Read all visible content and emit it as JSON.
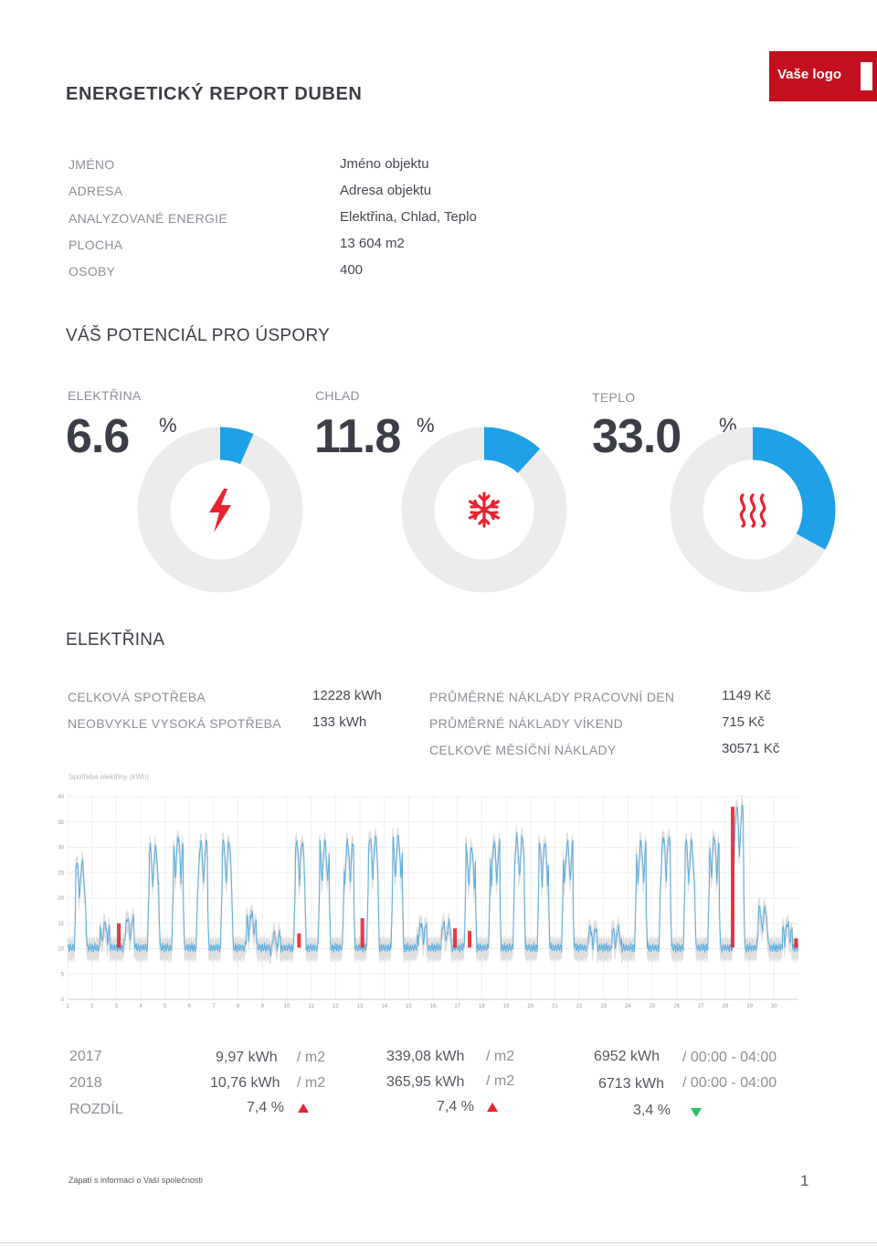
{
  "report": {
    "title": "ENERGETICKÝ REPORT DUBEN",
    "logo_text": "Vaše logo"
  },
  "info": [
    {
      "label": "JMÉNO",
      "value": "Jméno objektu"
    },
    {
      "label": "ADRESA",
      "value": "Adresa objektu"
    },
    {
      "label": "ANALYZOVANÉ ENERGIE",
      "value": "Elektřina, Chlad, Teplo"
    },
    {
      "label": "PLOCHA",
      "value": "13 604 m2"
    },
    {
      "label": "OSOBY",
      "value": "400"
    }
  ],
  "savings": {
    "title": "VÁŠ POTENCIÁL PRO ÚSPORY",
    "gauges": [
      {
        "label": "ELEKTŘINA",
        "value": "6.6",
        "unit": "%",
        "fraction": 0.066,
        "icon": "lightning-icon"
      },
      {
        "label": "CHLAD",
        "value": "11.8",
        "unit": "%",
        "fraction": 0.118,
        "icon": "snowflake-icon"
      },
      {
        "label": "TEPLO",
        "value": "33.0",
        "unit": "%",
        "fraction": 0.33,
        "icon": "heat-icon"
      }
    ],
    "colors": {
      "fill": "#1ea1e6",
      "track": "#ececec",
      "icon": "#e8232f"
    }
  },
  "electricity": {
    "title": "ELEKTŘINA",
    "stats_left": [
      {
        "label": "CELKOVÁ SPOTŘEBA",
        "value": "12228 kWh"
      },
      {
        "label": "NEOBVYKLE VYSOKÁ SPOTŘEBA",
        "value": "133 kWh"
      }
    ],
    "stats_right": [
      {
        "label": "PRŮMĚRNÉ NÁKLADY PRACOVNÍ DEN",
        "value": "1149 Kč"
      },
      {
        "label": "PRŮMĚRNÉ NÁKLADY VÍKEND",
        "value": "715 Kč"
      },
      {
        "label": "CELKOVÉ MĚSÍČNÍ NÁKLADY",
        "value": "30571 Kč"
      }
    ]
  },
  "chart_data": {
    "type": "line",
    "ylabel": "Spotřeba elektřiny (kWh)",
    "ylim": [
      0,
      40
    ],
    "yticks": [
      "0",
      "5",
      "10",
      "15",
      "20",
      "25",
      "30",
      "35",
      "40"
    ],
    "xlim": [
      1,
      31
    ],
    "xticks": [
      "1",
      "2",
      "3",
      "4",
      "5",
      "6",
      "7",
      "8",
      "9",
      "10",
      "11",
      "12",
      "13",
      "14",
      "15",
      "16",
      "17",
      "18",
      "19",
      "20",
      "21",
      "22",
      "23",
      "24",
      "25",
      "26",
      "27",
      "28",
      "29",
      "30"
    ],
    "grid": true,
    "day_types": [
      "we",
      "we",
      "wd",
      "wd",
      "wd",
      "wd",
      "wd",
      "we",
      "we",
      "wd",
      "wd",
      "wd",
      "wd",
      "wd",
      "we",
      "we",
      "wd",
      "wd",
      "wd",
      "wd",
      "wd",
      "we",
      "we",
      "wd",
      "wd",
      "wd",
      "wd",
      "wd",
      "we",
      "we"
    ],
    "series": [
      {
        "role": "range",
        "color": "#d9d9d9"
      },
      {
        "role": "line",
        "color": "#5aaee2"
      },
      {
        "role": "anomaly",
        "color": "#e8232f"
      }
    ],
    "day_peaks": [
      27,
      15,
      16,
      30,
      32,
      31,
      31,
      17,
      13,
      31,
      31,
      31,
      32,
      32,
      15,
      15,
      30,
      31,
      32,
      31,
      31,
      14,
      14,
      31,
      32,
      31,
      32,
      38,
      18,
      15
    ],
    "base": 10.2,
    "anomalies": [
      {
        "x": 3.1,
        "peak": 15
      },
      {
        "x": 10.5,
        "peak": 13
      },
      {
        "x": 13.1,
        "peak": 16
      },
      {
        "x": 16.9,
        "peak": 14
      },
      {
        "x": 17.5,
        "peak": 13.5
      },
      {
        "x": 28.3,
        "peak": 38
      },
      {
        "x": 30.9,
        "peak": 12
      }
    ]
  },
  "comparison": {
    "rows": [
      {
        "label": "2017",
        "c1": "9,97 kWh",
        "u1": "/ m2",
        "c2": "339,08 kWh",
        "u2": "/ m2",
        "c3": "6952 kWh",
        "u3": "/ 00:00 - 04:00"
      },
      {
        "label": "2018",
        "c1": "10,76 kWh",
        "u1": "/ m2",
        "c2": "365,95 kWh",
        "u2": "/ m2",
        "c3": "6713 kWh",
        "u3": "/ 00:00 - 04:00"
      }
    ],
    "diff": {
      "label": "ROZDÍL",
      "d1": "7,4 %",
      "d2": "7,4 %",
      "d3": "3,4 %"
    },
    "colors": {
      "up": "#e8232f",
      "down": "#2cc261"
    }
  },
  "footer": {
    "text": "Zápatí s informací o Vaší společnosti",
    "page": "1"
  }
}
